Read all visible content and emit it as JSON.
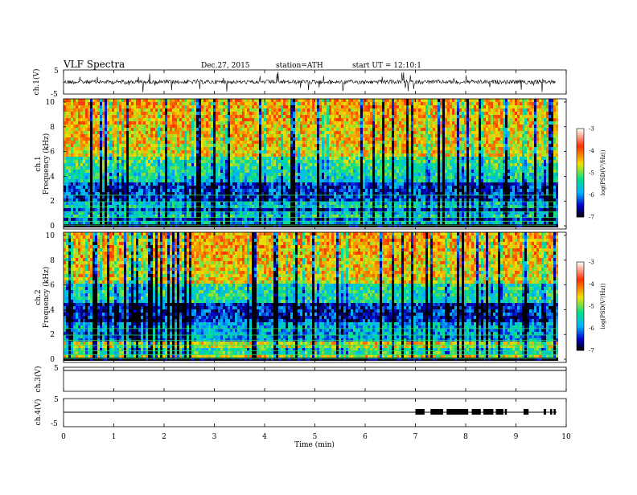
{
  "header": {
    "title": "VLF  Spectra",
    "date": "Dec.27, 2015",
    "station": "station=ATH",
    "start": "start  UT  =    12:10:1"
  },
  "chart_data": [
    {
      "type": "line",
      "panel": "ch1-waveform",
      "ylabel": "ch.1(V)",
      "ylim": [
        -5,
        5
      ],
      "yticks": [
        "5",
        "-5"
      ],
      "baseline": 0
    },
    {
      "type": "heatmap",
      "panel": "ch1-spectrogram",
      "ylabel_top": "ch.1",
      "ylabel": "Frequency  (kHz)",
      "ylim": [
        0,
        10
      ],
      "yticks": [
        "10",
        "8",
        "6",
        "4",
        "2",
        "0"
      ],
      "xlim": [
        0,
        10
      ],
      "colorbar": {
        "label": "log(PSD(V²/Hz))",
        "range": [
          -7,
          -3
        ],
        "ticks": [
          "-3",
          "-4",
          "-5",
          "-6",
          "-7"
        ],
        "scale": [
          "#000000",
          "#0000cc",
          "#00b4ff",
          "#00e08c",
          "#f0e000",
          "#ff3000",
          "#ffffff"
        ]
      }
    },
    {
      "type": "heatmap",
      "panel": "ch2-spectrogram",
      "ylabel_top": "ch.2",
      "ylabel": "Frequency  (kHz)",
      "ylim": [
        0,
        10
      ],
      "yticks": [
        "10",
        "8",
        "6",
        "4",
        "2",
        "0"
      ],
      "xlim": [
        0,
        10
      ],
      "colorbar": {
        "label": "log(PSD(V²/Hz))",
        "range": [
          -7,
          -3
        ],
        "ticks": [
          "-3",
          "-4",
          "-5",
          "-6",
          "-7"
        ]
      }
    },
    {
      "type": "line",
      "panel": "ch3-waveform",
      "ylabel": "ch.3(V)",
      "ylim": [
        -5,
        5
      ],
      "yticks": [
        "5"
      ],
      "baseline": -5
    },
    {
      "type": "line",
      "panel": "ch4-waveform",
      "ylabel": "ch.4(V)",
      "ylim": [
        -5,
        5
      ],
      "yticks": [
        "5",
        "-5"
      ],
      "baseline": 0,
      "active_segments_min": [
        [
          7.0,
          7.18
        ],
        [
          7.3,
          7.55
        ],
        [
          7.62,
          8.05
        ],
        [
          8.12,
          8.3
        ],
        [
          8.35,
          8.55
        ],
        [
          8.6,
          8.75
        ],
        [
          8.78,
          8.82
        ],
        [
          9.15,
          9.25
        ],
        [
          9.55,
          9.6
        ],
        [
          9.68,
          9.72
        ],
        [
          9.75,
          9.79
        ]
      ]
    }
  ],
  "xaxis": {
    "label": "Time  (min)",
    "range": [
      0,
      10
    ],
    "ticks": [
      "0",
      "1",
      "2",
      "3",
      "4",
      "5",
      "6",
      "7",
      "8",
      "9",
      "10"
    ],
    "data_end": 9.8
  }
}
